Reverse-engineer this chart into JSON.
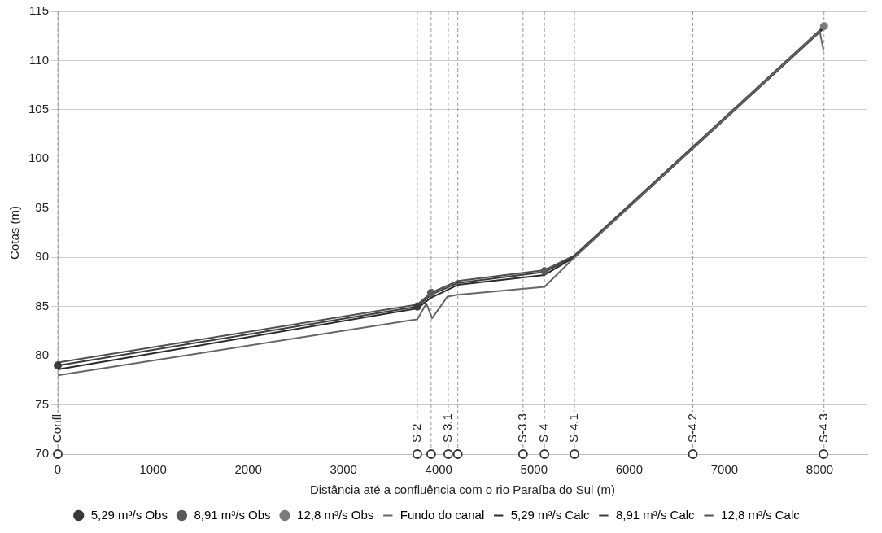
{
  "chart_data": {
    "type": "line",
    "xlabel": "Distância até a confluência com o rio Paraíba do Sul (m)",
    "ylabel": "Cotas (m)",
    "xlim": [
      0,
      8500
    ],
    "xticks": [
      0,
      1000,
      2000,
      3000,
      4000,
      5000,
      6000,
      7000,
      8000
    ],
    "ylim": [
      70,
      115
    ],
    "yticks": [
      70,
      75,
      80,
      85,
      90,
      95,
      100,
      105,
      110,
      115
    ],
    "grid": "y",
    "legend": "bottom",
    "series": [
      {
        "name": "5,29 m³/s Obs",
        "type": "scatter",
        "marker": "circle",
        "color": "#3a3a3a",
        "x": [
          0,
          3775
        ],
        "values": [
          79.0,
          85.0
        ]
      },
      {
        "name": "8,91 m³/s Obs",
        "type": "scatter",
        "marker": "circle",
        "color": "#5a5a5a",
        "x": [
          3920,
          5110
        ],
        "values": [
          86.4,
          88.6
        ]
      },
      {
        "name": "12,8 m³/s Obs",
        "type": "scatter",
        "marker": "circle",
        "color": "#7a7a7a",
        "x": [
          8045
        ],
        "values": [
          113.5
        ]
      },
      {
        "name": "Fundo do canal",
        "type": "line",
        "marker": "none",
        "color": "#666666",
        "x": [
          0,
          3775,
          3870,
          3930,
          4090,
          4200,
          5110,
          5425,
          8000,
          8040
        ],
        "values": [
          78.0,
          83.7,
          85.3,
          83.8,
          86.0,
          86.2,
          87.0,
          90.0,
          113.0,
          111.0
        ]
      },
      {
        "name": "5,29 m³/s Calc",
        "type": "line",
        "marker": "none",
        "color": "#2a2a2a",
        "x": [
          0,
          3775,
          3920,
          4200,
          5110,
          5425,
          8045
        ],
        "values": [
          78.6,
          84.8,
          85.9,
          87.2,
          88.2,
          90.0,
          113.3
        ]
      },
      {
        "name": "8,91 m³/s Calc",
        "type": "line",
        "marker": "none",
        "color": "#3c3c3c",
        "x": [
          0,
          3775,
          3920,
          4200,
          5110,
          5425,
          8045
        ],
        "values": [
          79.0,
          85.0,
          86.2,
          87.4,
          88.5,
          90.1,
          113.4
        ]
      },
      {
        "name": "12,8 m³/s Calc",
        "type": "line",
        "marker": "none",
        "color": "#505050",
        "x": [
          0,
          3775,
          3920,
          4200,
          5110,
          5425,
          8045
        ],
        "values": [
          79.3,
          85.2,
          86.4,
          87.6,
          88.7,
          90.2,
          113.5
        ]
      },
      {
        "type": "scatter",
        "marker": "circle",
        "color": "#333333",
        "x": [
          0,
          3775,
          3920,
          4100,
          4200,
          4885,
          5110,
          5425,
          6668,
          8040
        ],
        "values": [
          70,
          70,
          70,
          70,
          70,
          70,
          70,
          70,
          70,
          70
        ]
      }
    ],
    "ref_lines": [
      {
        "axis": "x",
        "value": 0,
        "label": "Confl",
        "color": "#999999",
        "line_style": "dashed"
      },
      {
        "axis": "x",
        "value": 3775,
        "label": "S-2",
        "color": "#999999",
        "line_style": "dashed"
      },
      {
        "axis": "x",
        "value": 3920,
        "label": null,
        "color": "#999999",
        "line_style": "dashed"
      },
      {
        "axis": "x",
        "value": 4100,
        "label": "S-3.1",
        "color": "#999999",
        "line_style": "dashed"
      },
      {
        "axis": "x",
        "value": 4200,
        "label": null,
        "color": "#999999",
        "line_style": "dashed"
      },
      {
        "axis": "x",
        "value": 4885,
        "label": "S-3.3",
        "color": "#999999",
        "line_style": "dashed"
      },
      {
        "axis": "x",
        "value": 5110,
        "label": "S-4",
        "color": "#999999",
        "line_style": "dashed"
      },
      {
        "axis": "x",
        "value": 5425,
        "label": "S-4.1",
        "color": "#999999",
        "line_style": "dashed"
      },
      {
        "axis": "x",
        "value": 6668,
        "label": "S-4.2",
        "color": "#999999",
        "line_style": "dashed"
      },
      {
        "axis": "x",
        "value": 8045,
        "label": "S-4.3",
        "color": "#999999",
        "line_style": "dashed"
      }
    ]
  }
}
